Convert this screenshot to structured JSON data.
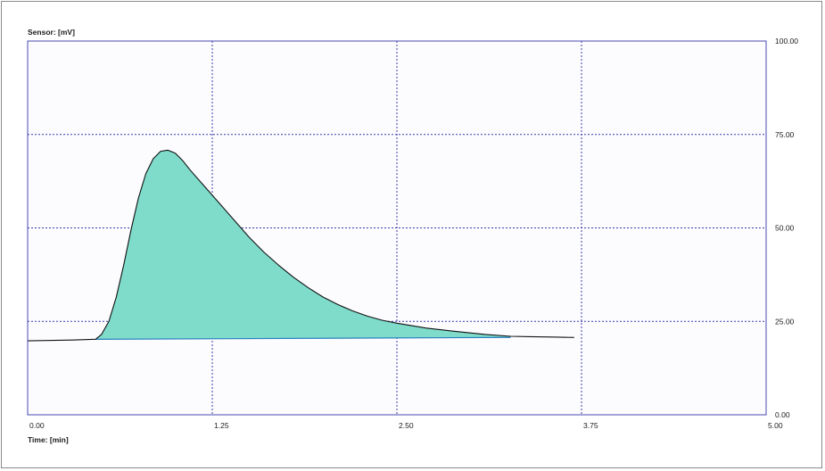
{
  "chart_data": {
    "type": "area",
    "ylabel": "Sensor: [mV]",
    "xlabel": "Time: [min]",
    "xlim": [
      0,
      5
    ],
    "ylim": [
      0,
      100
    ],
    "x_ticks": [
      0,
      1.25,
      2.5,
      3.75,
      5
    ],
    "x_tick_labels": [
      "0.00",
      "1.25",
      "2.50",
      "3.75",
      "5.00"
    ],
    "y_ticks": [
      0,
      25,
      50,
      75,
      100
    ],
    "y_tick_labels": [
      "0.00",
      "25.00",
      "50.00",
      "75.00",
      "100.00"
    ],
    "y_axis_side": "right",
    "grid": true,
    "baseline": {
      "x": [
        0,
        0.46,
        3.27,
        3.7
      ],
      "y": [
        19.8,
        20.2,
        20.7,
        20.7
      ]
    },
    "signal": {
      "x": [
        0,
        0.3,
        0.46,
        0.5,
        0.55,
        0.6,
        0.65,
        0.7,
        0.75,
        0.8,
        0.85,
        0.9,
        0.95,
        1.0,
        1.05,
        1.1,
        1.2,
        1.3,
        1.4,
        1.5,
        1.6,
        1.7,
        1.8,
        1.9,
        2.0,
        2.1,
        2.2,
        2.3,
        2.4,
        2.5,
        2.7,
        2.9,
        3.1,
        3.27,
        3.4,
        3.55,
        3.7
      ],
      "y": [
        19.8,
        20.0,
        20.2,
        21.5,
        25.0,
        31.5,
        40.0,
        49.5,
        58.0,
        64.5,
        68.5,
        70.5,
        70.8,
        70.0,
        68.0,
        65.5,
        61.0,
        56.5,
        52.0,
        47.5,
        43.5,
        40.0,
        36.8,
        34.0,
        31.5,
        29.5,
        27.8,
        26.4,
        25.3,
        24.5,
        23.2,
        22.3,
        21.5,
        21.0,
        20.9,
        20.8,
        20.7
      ]
    },
    "colors": {
      "fill": "#7fdccb",
      "signal_line": "#111111",
      "baseline_line": "#2a7fbf",
      "grid": "#3a3aa8",
      "plot_border": "#4a4ab0",
      "plot_background": "#fcfcff"
    }
  }
}
